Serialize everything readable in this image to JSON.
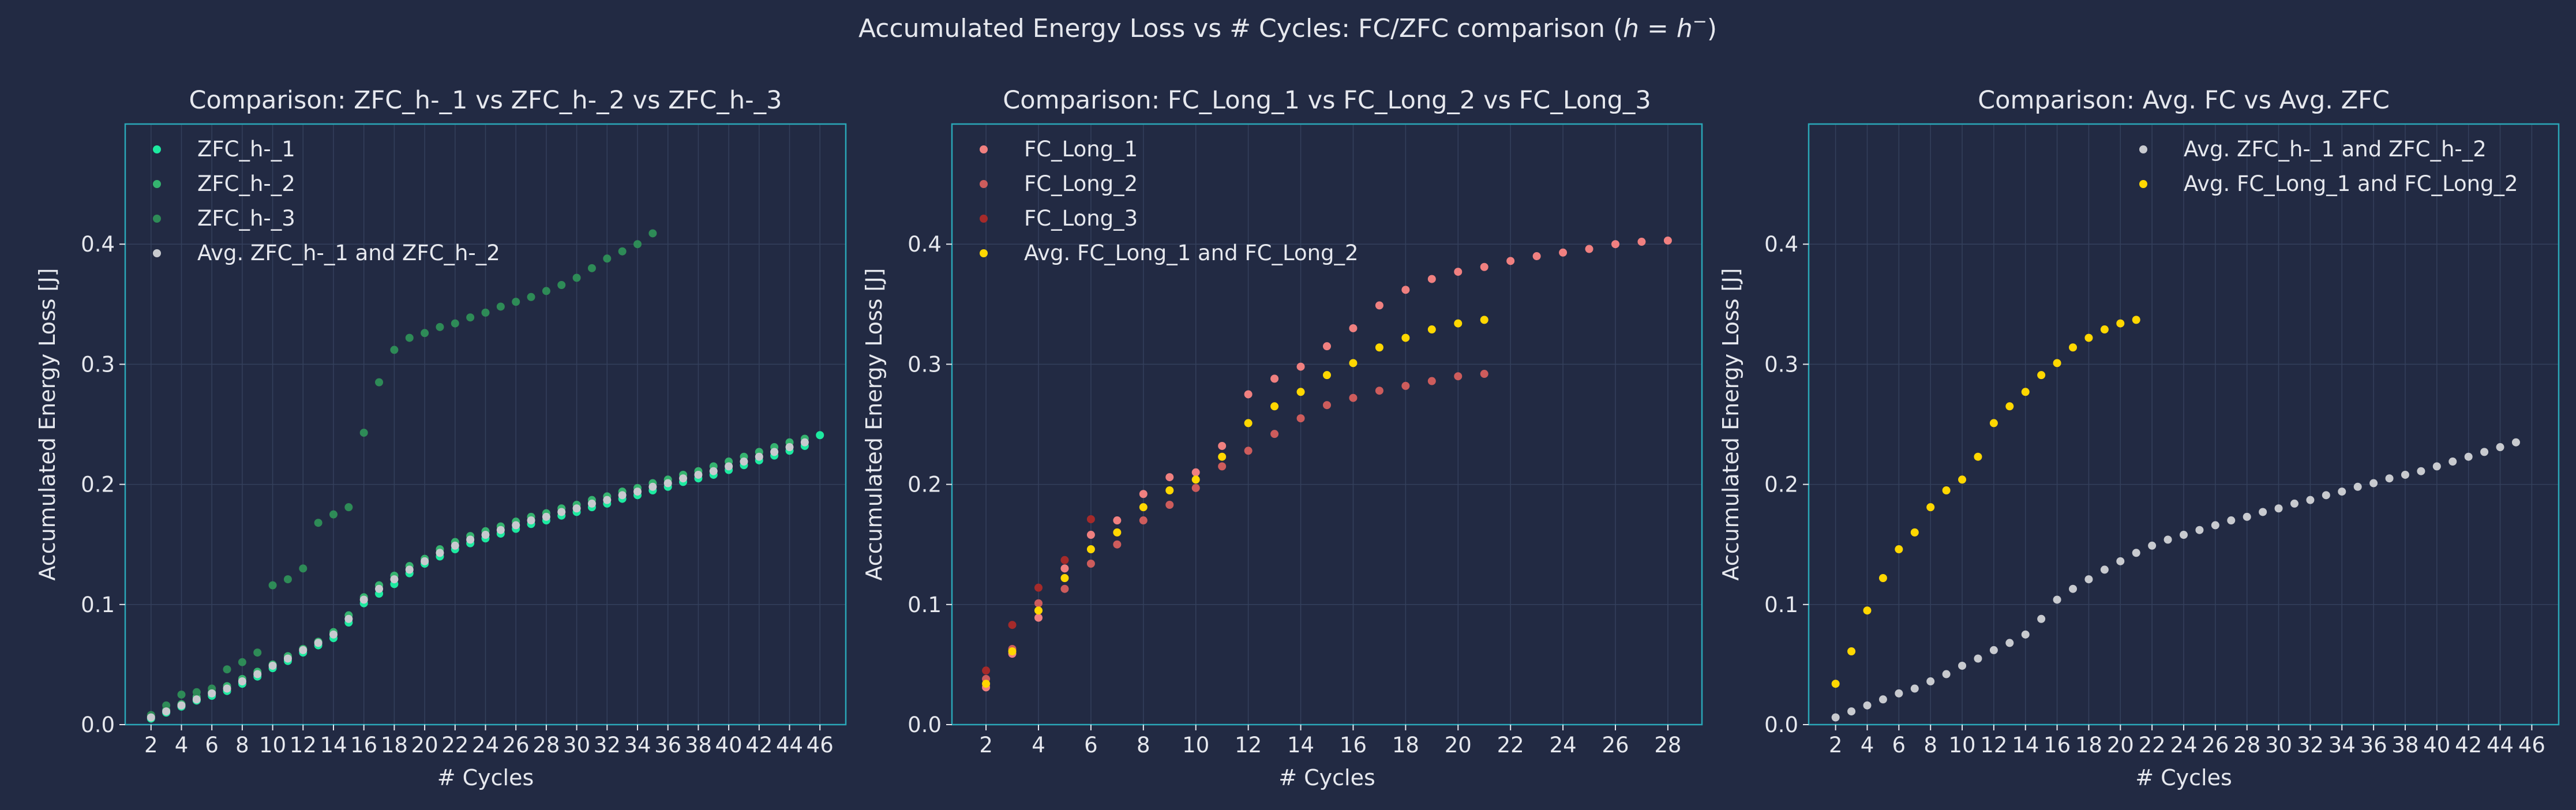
{
  "figure": {
    "suptitle_pre": "Accumulated Energy Loss vs # Cycles: FC/ZFC comparison (",
    "suptitle_math": "h = h",
    "suptitle_sup": "−",
    "suptitle_post": ")"
  },
  "colors": {
    "background": "#222a43",
    "axes_edge": "#2aa7b8",
    "grid": "#34405c",
    "text": "#e6e8ee",
    "zfc1": "#1de9a0",
    "zfc2": "#35b36f",
    "zfc3": "#2e8b57",
    "avg_zfc": "#c8cacf",
    "fc1": "#f08080",
    "fc2": "#cd5c5c",
    "fc3": "#a52a2a",
    "avg_fc": "#ffd700"
  },
  "chart_data": [
    {
      "type": "scatter",
      "title": "Comparison: ZFC_h-_1 vs ZFC_h-_2 vs ZFC_h-_3",
      "xlabel": "# Cycles",
      "ylabel": "Accumulated Energy Loss [J]",
      "xlim": [
        0.3,
        47.7
      ],
      "ylim": [
        0,
        0.5
      ],
      "xticks": [
        2,
        4,
        6,
        8,
        10,
        12,
        14,
        16,
        18,
        20,
        22,
        24,
        26,
        28,
        30,
        32,
        34,
        36,
        38,
        40,
        42,
        44,
        46
      ],
      "yticks": [
        0.0,
        0.1,
        0.2,
        0.3,
        0.4
      ],
      "grid": true,
      "legend_position": "top-left",
      "series": [
        {
          "name": "ZFC_h-_1",
          "color": "#1de9a0",
          "x": [
            2,
            3,
            4,
            5,
            6,
            7,
            8,
            9,
            10,
            11,
            12,
            13,
            14,
            15,
            16,
            17,
            18,
            19,
            20,
            21,
            22,
            23,
            24,
            25,
            26,
            27,
            28,
            29,
            30,
            31,
            32,
            33,
            34,
            35,
            36,
            37,
            38,
            39,
            40,
            41,
            42,
            43,
            44,
            45,
            46
          ],
          "y": [
            0.005,
            0.01,
            0.015,
            0.02,
            0.024,
            0.028,
            0.034,
            0.04,
            0.047,
            0.053,
            0.06,
            0.066,
            0.072,
            0.085,
            0.101,
            0.109,
            0.117,
            0.126,
            0.134,
            0.14,
            0.146,
            0.151,
            0.155,
            0.159,
            0.163,
            0.167,
            0.17,
            0.174,
            0.177,
            0.181,
            0.184,
            0.188,
            0.191,
            0.195,
            0.198,
            0.202,
            0.205,
            0.208,
            0.212,
            0.216,
            0.22,
            0.224,
            0.228,
            0.232,
            0.241
          ]
        },
        {
          "name": "ZFC_h-_2",
          "color": "#35b36f",
          "x": [
            2,
            3,
            4,
            5,
            6,
            7,
            8,
            9,
            10,
            11,
            12,
            13,
            14,
            15,
            16,
            17,
            18,
            19,
            20,
            21,
            22,
            23,
            24,
            25,
            26,
            27,
            28,
            29,
            30,
            31,
            32,
            33,
            34,
            35,
            36,
            37,
            38,
            39,
            40,
            41,
            42,
            43,
            44,
            45
          ],
          "y": [
            0.007,
            0.012,
            0.017,
            0.023,
            0.027,
            0.032,
            0.038,
            0.044,
            0.05,
            0.057,
            0.063,
            0.069,
            0.077,
            0.091,
            0.106,
            0.116,
            0.124,
            0.132,
            0.138,
            0.146,
            0.152,
            0.157,
            0.161,
            0.165,
            0.169,
            0.173,
            0.176,
            0.18,
            0.183,
            0.187,
            0.19,
            0.194,
            0.197,
            0.201,
            0.204,
            0.208,
            0.211,
            0.215,
            0.219,
            0.223,
            0.227,
            0.231,
            0.235,
            0.238
          ]
        },
        {
          "name": "ZFC_h-_3",
          "color": "#2e8b57",
          "x": [
            2,
            3,
            4,
            5,
            6,
            7,
            8,
            9,
            10,
            11,
            12,
            13,
            14,
            15,
            16,
            17,
            18,
            19,
            20,
            21,
            22,
            23,
            24,
            25,
            26,
            27,
            28,
            29,
            30,
            31,
            32,
            33,
            34,
            35
          ],
          "y": [
            0.008,
            0.016,
            0.025,
            0.027,
            0.03,
            0.046,
            0.052,
            0.06,
            0.116,
            0.121,
            0.13,
            0.168,
            0.175,
            0.181,
            0.243,
            0.285,
            0.312,
            0.322,
            0.326,
            0.331,
            0.334,
            0.339,
            0.343,
            0.348,
            0.352,
            0.356,
            0.361,
            0.366,
            0.372,
            0.38,
            0.388,
            0.394,
            0.4,
            0.409
          ]
        },
        {
          "name": "Avg. ZFC_h-_1 and ZFC_h-_2",
          "color": "#c8cacf",
          "x": [
            2,
            3,
            4,
            5,
            6,
            7,
            8,
            9,
            10,
            11,
            12,
            13,
            14,
            15,
            16,
            17,
            18,
            19,
            20,
            21,
            22,
            23,
            24,
            25,
            26,
            27,
            28,
            29,
            30,
            31,
            32,
            33,
            34,
            35,
            36,
            37,
            38,
            39,
            40,
            41,
            42,
            43,
            44,
            45
          ],
          "y": [
            0.006,
            0.011,
            0.016,
            0.021,
            0.026,
            0.03,
            0.036,
            0.042,
            0.049,
            0.055,
            0.062,
            0.068,
            0.075,
            0.088,
            0.104,
            0.113,
            0.121,
            0.129,
            0.136,
            0.143,
            0.149,
            0.154,
            0.158,
            0.162,
            0.166,
            0.17,
            0.173,
            0.177,
            0.18,
            0.184,
            0.187,
            0.191,
            0.194,
            0.198,
            0.201,
            0.205,
            0.208,
            0.211,
            0.215,
            0.219,
            0.223,
            0.227,
            0.231,
            0.235
          ]
        }
      ]
    },
    {
      "type": "scatter",
      "title": "Comparison: FC_Long_1 vs FC_Long_2 vs FC_Long_3",
      "xlabel": "# Cycles",
      "ylabel": "Accumulated Energy Loss [J]",
      "xlim": [
        0.7,
        29.3
      ],
      "ylim": [
        0,
        0.5
      ],
      "xticks": [
        2,
        4,
        6,
        8,
        10,
        12,
        14,
        16,
        18,
        20,
        22,
        24,
        26,
        28
      ],
      "yticks": [
        0.0,
        0.1,
        0.2,
        0.3,
        0.4
      ],
      "grid": true,
      "legend_position": "top-left",
      "series": [
        {
          "name": "FC_Long_1",
          "color": "#f08080",
          "x": [
            2,
            3,
            4,
            5,
            6,
            7,
            8,
            9,
            10,
            11,
            12,
            13,
            14,
            15,
            16,
            17,
            18,
            19,
            20,
            21,
            22,
            23,
            24,
            25,
            26,
            27,
            28
          ],
          "y": [
            0.031,
            0.059,
            0.089,
            0.13,
            0.158,
            0.17,
            0.192,
            0.206,
            0.21,
            0.232,
            0.275,
            0.288,
            0.298,
            0.315,
            0.33,
            0.349,
            0.362,
            0.371,
            0.377,
            0.381,
            0.386,
            0.39,
            0.393,
            0.396,
            0.4,
            0.402,
            0.403
          ]
        },
        {
          "name": "FC_Long_2",
          "color": "#cd5c5c",
          "x": [
            2,
            3,
            4,
            5,
            6,
            7,
            8,
            9,
            10,
            11,
            12,
            13,
            14,
            15,
            16,
            17,
            18,
            19,
            20,
            21
          ],
          "y": [
            0.038,
            0.063,
            0.101,
            0.113,
            0.134,
            0.15,
            0.17,
            0.183,
            0.197,
            0.215,
            0.228,
            0.242,
            0.255,
            0.266,
            0.272,
            0.278,
            0.282,
            0.286,
            0.29,
            0.292
          ]
        },
        {
          "name": "FC_Long_3",
          "color": "#a52a2a",
          "x": [
            2,
            3,
            4,
            5,
            6
          ],
          "y": [
            0.045,
            0.083,
            0.114,
            0.137,
            0.171
          ]
        },
        {
          "name": "Avg. FC_Long_1 and FC_Long_2",
          "color": "#ffd700",
          "x": [
            2,
            3,
            4,
            5,
            6,
            7,
            8,
            9,
            10,
            11,
            12,
            13,
            14,
            15,
            16,
            17,
            18,
            19,
            20,
            21
          ],
          "y": [
            0.034,
            0.061,
            0.095,
            0.122,
            0.146,
            0.16,
            0.181,
            0.195,
            0.204,
            0.223,
            0.251,
            0.265,
            0.277,
            0.291,
            0.301,
            0.314,
            0.322,
            0.329,
            0.334,
            0.337
          ]
        }
      ]
    },
    {
      "type": "scatter",
      "title": "Comparison: Avg. FC vs Avg. ZFC",
      "xlabel": "# Cycles",
      "ylabel": "Accumulated Energy Loss [J]",
      "xlim": [
        0.3,
        47.7
      ],
      "ylim": [
        0,
        0.5
      ],
      "xticks": [
        2,
        4,
        6,
        8,
        10,
        12,
        14,
        16,
        18,
        20,
        22,
        24,
        26,
        28,
        30,
        32,
        34,
        36,
        38,
        40,
        42,
        44,
        46
      ],
      "yticks": [
        0.0,
        0.1,
        0.2,
        0.3,
        0.4
      ],
      "grid": true,
      "legend_position": "top-right",
      "series": [
        {
          "name": "Avg. ZFC_h-_1 and ZFC_h-_2",
          "color": "#c8cacf",
          "x": [
            2,
            3,
            4,
            5,
            6,
            7,
            8,
            9,
            10,
            11,
            12,
            13,
            14,
            15,
            16,
            17,
            18,
            19,
            20,
            21,
            22,
            23,
            24,
            25,
            26,
            27,
            28,
            29,
            30,
            31,
            32,
            33,
            34,
            35,
            36,
            37,
            38,
            39,
            40,
            41,
            42,
            43,
            44,
            45
          ],
          "y": [
            0.006,
            0.011,
            0.016,
            0.021,
            0.026,
            0.03,
            0.036,
            0.042,
            0.049,
            0.055,
            0.062,
            0.068,
            0.075,
            0.088,
            0.104,
            0.113,
            0.121,
            0.129,
            0.136,
            0.143,
            0.149,
            0.154,
            0.158,
            0.162,
            0.166,
            0.17,
            0.173,
            0.177,
            0.18,
            0.184,
            0.187,
            0.191,
            0.194,
            0.198,
            0.201,
            0.205,
            0.208,
            0.211,
            0.215,
            0.219,
            0.223,
            0.227,
            0.231,
            0.235
          ]
        },
        {
          "name": "Avg. FC_Long_1 and FC_Long_2",
          "color": "#ffd700",
          "x": [
            2,
            3,
            4,
            5,
            6,
            7,
            8,
            9,
            10,
            11,
            12,
            13,
            14,
            15,
            16,
            17,
            18,
            19,
            20,
            21
          ],
          "y": [
            0.034,
            0.061,
            0.095,
            0.122,
            0.146,
            0.16,
            0.181,
            0.195,
            0.204,
            0.223,
            0.251,
            0.265,
            0.277,
            0.291,
            0.301,
            0.314,
            0.322,
            0.329,
            0.334,
            0.337
          ]
        }
      ]
    }
  ]
}
